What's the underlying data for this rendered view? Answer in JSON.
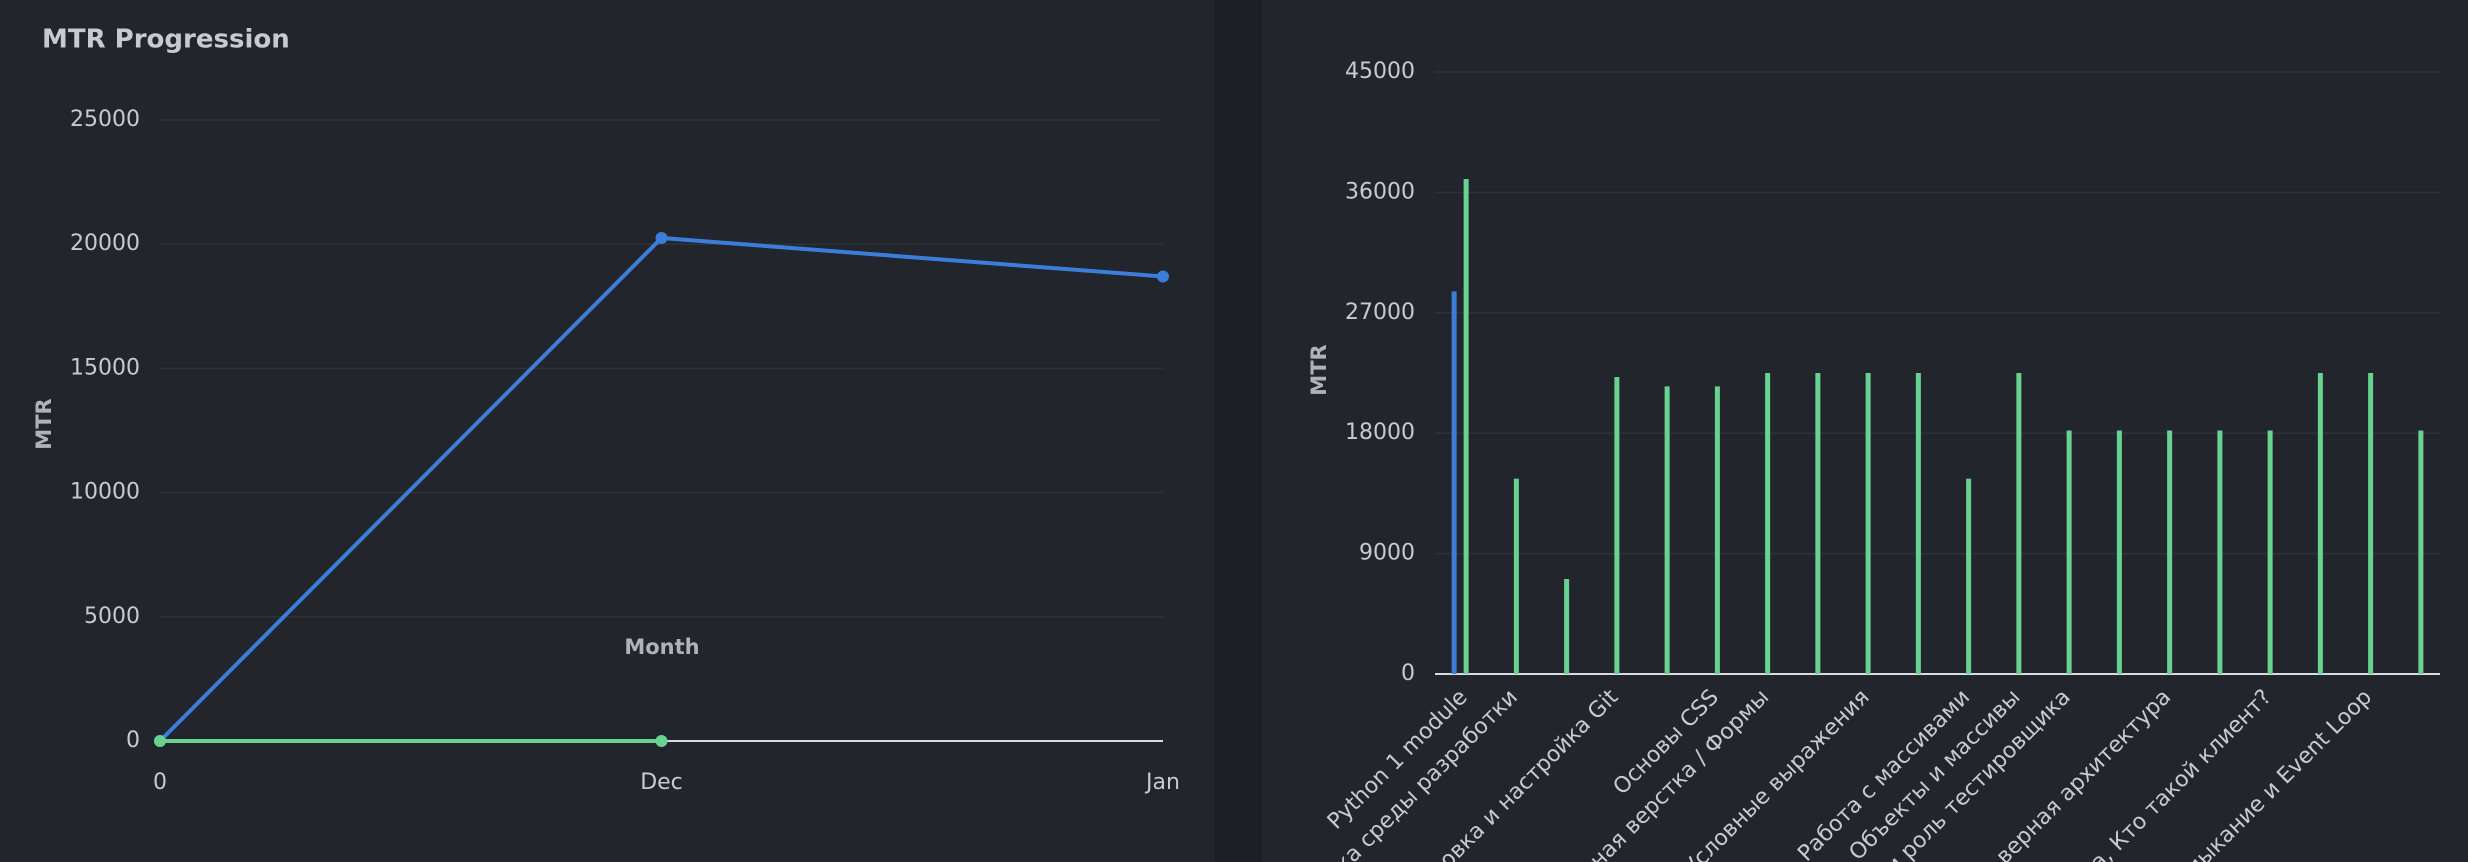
{
  "chart_data": [
    {
      "type": "line",
      "title": "MTR Progression",
      "xlabel": "Month",
      "ylabel": "MTR",
      "categories": [
        "0",
        "Dec",
        "Jan"
      ],
      "series": [
        {
          "color": "#3b7dd8",
          "values": [
            0,
            20250,
            18700
          ]
        },
        {
          "color": "#68d391",
          "values": [
            0,
            0,
            null
          ]
        }
      ],
      "ylim": [
        0,
        25000
      ],
      "yticks": [
        0,
        5000,
        10000,
        15000,
        20000,
        25000
      ],
      "grid": true
    },
    {
      "type": "bar",
      "ylabel": "MTR",
      "categories": [
        "Python 1 module",
        "ка среды разработки",
        null,
        "овка и настройка Git",
        null,
        "Основы CSS",
        "ная верстка / Формы",
        null,
        "Условные выражения",
        null,
        "Работа с массивами",
        "Объекты и массивы",
        "и роль тестировщика",
        null,
        "верная архитектура",
        null,
        "а, Кто такой клиент?",
        null,
        "мыкание и Event Loop",
        null
      ],
      "series": [
        {
          "color": "#3b7dd8",
          "values": [
            28600,
            null,
            null,
            null,
            null,
            null,
            null,
            null,
            null,
            null,
            null,
            null,
            null,
            null,
            null,
            null,
            null,
            null,
            null,
            null
          ]
        },
        {
          "color": "#68d391",
          "values": [
            37000,
            14600,
            7100,
            22200,
            21500,
            21500,
            22500,
            22500,
            22500,
            22500,
            14600,
            22500,
            18200,
            18200,
            18200,
            18200,
            18200,
            22500,
            22500,
            18200
          ]
        }
      ],
      "ylim": [
        0,
        45000
      ],
      "yticks": [
        0,
        9000,
        18000,
        27000,
        36000,
        45000
      ],
      "grid": true
    }
  ]
}
